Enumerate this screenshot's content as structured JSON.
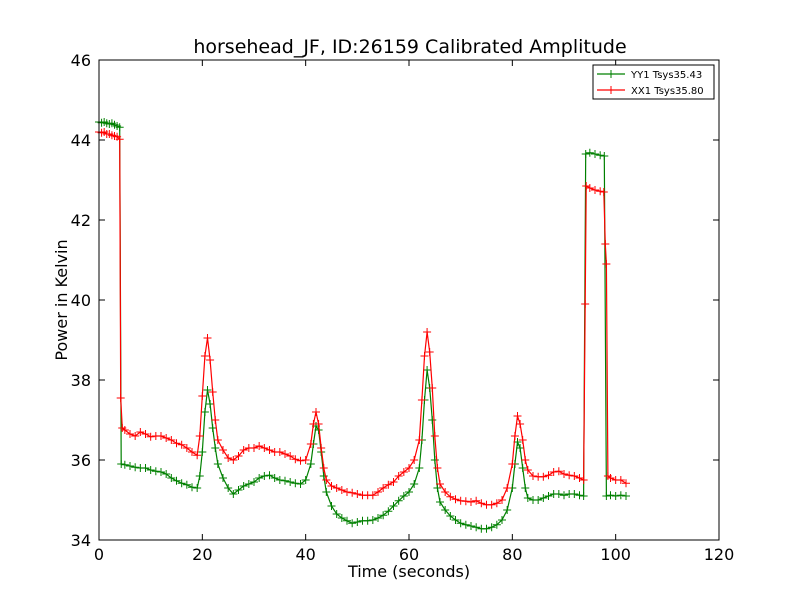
{
  "chart_data": {
    "type": "line",
    "title": "horsehead_JF, ID:26159 Calibrated Amplitude",
    "xlabel": "Time (seconds)",
    "ylabel": "Power in Kelvin",
    "xlim": [
      0,
      120
    ],
    "ylim": [
      34,
      46
    ],
    "xticks": [
      0,
      20,
      40,
      60,
      80,
      100,
      120
    ],
    "yticks": [
      34,
      36,
      38,
      40,
      42,
      44,
      46
    ],
    "grid": false,
    "legend": "top-right",
    "markers": "plus",
    "series": [
      {
        "name": "YY1 Tsys35.43",
        "color": "#008000",
        "points": [
          [
            0.0,
            44.45
          ],
          [
            0.5,
            44.43
          ],
          [
            1.0,
            44.45
          ],
          [
            1.5,
            44.42
          ],
          [
            2.0,
            44.4
          ],
          [
            2.5,
            44.42
          ],
          [
            3.0,
            44.38
          ],
          [
            3.5,
            44.35
          ],
          [
            4.0,
            44.32
          ],
          [
            4.3,
            35.9
          ],
          [
            5,
            35.88
          ],
          [
            6,
            35.85
          ],
          [
            7,
            35.82
          ],
          [
            8,
            35.8
          ],
          [
            9,
            35.8
          ],
          [
            10,
            35.75
          ],
          [
            11,
            35.72
          ],
          [
            12,
            35.7
          ],
          [
            13,
            35.65
          ],
          [
            14,
            35.55
          ],
          [
            15,
            35.48
          ],
          [
            16,
            35.42
          ],
          [
            17,
            35.38
          ],
          [
            18,
            35.32
          ],
          [
            19,
            35.3
          ],
          [
            19.5,
            35.6
          ],
          [
            20,
            36.2
          ],
          [
            20.5,
            37.2
          ],
          [
            21,
            37.75
          ],
          [
            21.5,
            37.4
          ],
          [
            22,
            36.8
          ],
          [
            22.5,
            36.3
          ],
          [
            23,
            35.9
          ],
          [
            24,
            35.55
          ],
          [
            25,
            35.3
          ],
          [
            26,
            35.15
          ],
          [
            27,
            35.25
          ],
          [
            28,
            35.35
          ],
          [
            29,
            35.4
          ],
          [
            30,
            35.45
          ],
          [
            31,
            35.55
          ],
          [
            32,
            35.6
          ],
          [
            33,
            35.62
          ],
          [
            34,
            35.55
          ],
          [
            35,
            35.5
          ],
          [
            36,
            35.48
          ],
          [
            37,
            35.45
          ],
          [
            38,
            35.42
          ],
          [
            39,
            35.4
          ],
          [
            40,
            35.5
          ],
          [
            41,
            35.9
          ],
          [
            41.5,
            36.4
          ],
          [
            42,
            36.85
          ],
          [
            42.5,
            36.75
          ],
          [
            43,
            36.2
          ],
          [
            43.5,
            35.6
          ],
          [
            44,
            35.2
          ],
          [
            45,
            34.85
          ],
          [
            46,
            34.65
          ],
          [
            47,
            34.55
          ],
          [
            48,
            34.48
          ],
          [
            49,
            34.42
          ],
          [
            50,
            34.45
          ],
          [
            51,
            34.48
          ],
          [
            52,
            34.48
          ],
          [
            53,
            34.5
          ],
          [
            54,
            34.55
          ],
          [
            55,
            34.62
          ],
          [
            56,
            34.72
          ],
          [
            57,
            34.85
          ],
          [
            58,
            34.98
          ],
          [
            59,
            35.1
          ],
          [
            60,
            35.2
          ],
          [
            61,
            35.4
          ],
          [
            62,
            35.8
          ],
          [
            62.5,
            36.5
          ],
          [
            63,
            37.5
          ],
          [
            63.5,
            38.25
          ],
          [
            64,
            37.8
          ],
          [
            64.5,
            37.0
          ],
          [
            65,
            36.0
          ],
          [
            65.5,
            35.3
          ],
          [
            66,
            34.95
          ],
          [
            67,
            34.75
          ],
          [
            68,
            34.6
          ],
          [
            69,
            34.5
          ],
          [
            70,
            34.42
          ],
          [
            71,
            34.38
          ],
          [
            72,
            34.35
          ],
          [
            73,
            34.32
          ],
          [
            74,
            34.28
          ],
          [
            75,
            34.28
          ],
          [
            76,
            34.32
          ],
          [
            77,
            34.38
          ],
          [
            78,
            34.5
          ],
          [
            79,
            34.75
          ],
          [
            80,
            35.3
          ],
          [
            80.5,
            35.9
          ],
          [
            81,
            36.45
          ],
          [
            81.5,
            36.3
          ],
          [
            82,
            35.8
          ],
          [
            82.5,
            35.3
          ],
          [
            83,
            35.05
          ],
          [
            84,
            35.0
          ],
          [
            85,
            35.0
          ],
          [
            86,
            35.05
          ],
          [
            87,
            35.1
          ],
          [
            88,
            35.15
          ],
          [
            89,
            35.15
          ],
          [
            90,
            35.12
          ],
          [
            91,
            35.15
          ],
          [
            92,
            35.15
          ],
          [
            93,
            35.12
          ],
          [
            93.8,
            35.1
          ],
          [
            94.2,
            43.65
          ],
          [
            95,
            43.68
          ],
          [
            96,
            43.65
          ],
          [
            97,
            43.62
          ],
          [
            97.8,
            43.6
          ],
          [
            98.2,
            35.1
          ],
          [
            99,
            35.12
          ],
          [
            100,
            35.1
          ],
          [
            101,
            35.12
          ],
          [
            102,
            35.1
          ]
        ]
      },
      {
        "name": "XX1 Tsys35.80",
        "color": "#ff0000",
        "points": [
          [
            0.0,
            44.2
          ],
          [
            0.5,
            44.18
          ],
          [
            1.0,
            44.2
          ],
          [
            1.5,
            44.15
          ],
          [
            2.0,
            44.15
          ],
          [
            2.5,
            44.12
          ],
          [
            3.0,
            44.1
          ],
          [
            3.5,
            44.08
          ],
          [
            4.0,
            44.02
          ],
          [
            4.2,
            37.55
          ],
          [
            4.5,
            36.8
          ],
          [
            5,
            36.75
          ],
          [
            6,
            36.65
          ],
          [
            7,
            36.6
          ],
          [
            8,
            36.7
          ],
          [
            9,
            36.65
          ],
          [
            10,
            36.58
          ],
          [
            11,
            36.6
          ],
          [
            12,
            36.6
          ],
          [
            13,
            36.55
          ],
          [
            14,
            36.5
          ],
          [
            15,
            36.42
          ],
          [
            16,
            36.38
          ],
          [
            17,
            36.3
          ],
          [
            18,
            36.2
          ],
          [
            19,
            36.12
          ],
          [
            19.5,
            36.6
          ],
          [
            20,
            37.6
          ],
          [
            20.5,
            38.6
          ],
          [
            21,
            39.05
          ],
          [
            21.5,
            38.5
          ],
          [
            22,
            37.7
          ],
          [
            22.5,
            37.0
          ],
          [
            23,
            36.5
          ],
          [
            24,
            36.25
          ],
          [
            25,
            36.05
          ],
          [
            26,
            36.0
          ],
          [
            27,
            36.1
          ],
          [
            28,
            36.25
          ],
          [
            29,
            36.3
          ],
          [
            30,
            36.3
          ],
          [
            31,
            36.35
          ],
          [
            32,
            36.3
          ],
          [
            33,
            36.25
          ],
          [
            34,
            36.2
          ],
          [
            35,
            36.2
          ],
          [
            36,
            36.15
          ],
          [
            37,
            36.1
          ],
          [
            38,
            36.02
          ],
          [
            39,
            35.98
          ],
          [
            40,
            36.0
          ],
          [
            41,
            36.4
          ],
          [
            41.5,
            36.9
          ],
          [
            42,
            37.2
          ],
          [
            42.5,
            36.9
          ],
          [
            43,
            36.3
          ],
          [
            43.5,
            35.8
          ],
          [
            44,
            35.5
          ],
          [
            45,
            35.35
          ],
          [
            46,
            35.3
          ],
          [
            47,
            35.25
          ],
          [
            48,
            35.2
          ],
          [
            49,
            35.18
          ],
          [
            50,
            35.15
          ],
          [
            51,
            35.12
          ],
          [
            52,
            35.12
          ],
          [
            53,
            35.12
          ],
          [
            54,
            35.2
          ],
          [
            55,
            35.3
          ],
          [
            56,
            35.38
          ],
          [
            57,
            35.45
          ],
          [
            58,
            35.6
          ],
          [
            59,
            35.7
          ],
          [
            60,
            35.8
          ],
          [
            61,
            36.0
          ],
          [
            62,
            36.5
          ],
          [
            62.5,
            37.5
          ],
          [
            63,
            38.6
          ],
          [
            63.5,
            39.2
          ],
          [
            64,
            38.7
          ],
          [
            64.5,
            37.8
          ],
          [
            65,
            36.6
          ],
          [
            65.5,
            35.8
          ],
          [
            66,
            35.4
          ],
          [
            67,
            35.2
          ],
          [
            68,
            35.08
          ],
          [
            69,
            35.02
          ],
          [
            70,
            34.98
          ],
          [
            71,
            34.97
          ],
          [
            72,
            34.95
          ],
          [
            73,
            34.98
          ],
          [
            74,
            34.92
          ],
          [
            75,
            34.88
          ],
          [
            76,
            34.88
          ],
          [
            77,
            34.92
          ],
          [
            78,
            35.0
          ],
          [
            79,
            35.3
          ],
          [
            80,
            35.9
          ],
          [
            80.5,
            36.6
          ],
          [
            81,
            37.1
          ],
          [
            81.5,
            36.9
          ],
          [
            82,
            36.5
          ],
          [
            82.5,
            36.0
          ],
          [
            83,
            35.75
          ],
          [
            84,
            35.6
          ],
          [
            85,
            35.58
          ],
          [
            86,
            35.58
          ],
          [
            87,
            35.62
          ],
          [
            88,
            35.7
          ],
          [
            89,
            35.72
          ],
          [
            90,
            35.65
          ],
          [
            91,
            35.62
          ],
          [
            92,
            35.6
          ],
          [
            93,
            35.55
          ],
          [
            93.8,
            35.5
          ],
          [
            94.1,
            39.9
          ],
          [
            94.3,
            42.85
          ],
          [
            95,
            42.8
          ],
          [
            96,
            42.75
          ],
          [
            97,
            42.72
          ],
          [
            97.7,
            42.7
          ],
          [
            98.0,
            41.4
          ],
          [
            98.2,
            40.9
          ],
          [
            98.5,
            35.6
          ],
          [
            99,
            35.55
          ],
          [
            100,
            35.5
          ],
          [
            101,
            35.5
          ],
          [
            102,
            35.42
          ]
        ]
      }
    ]
  }
}
